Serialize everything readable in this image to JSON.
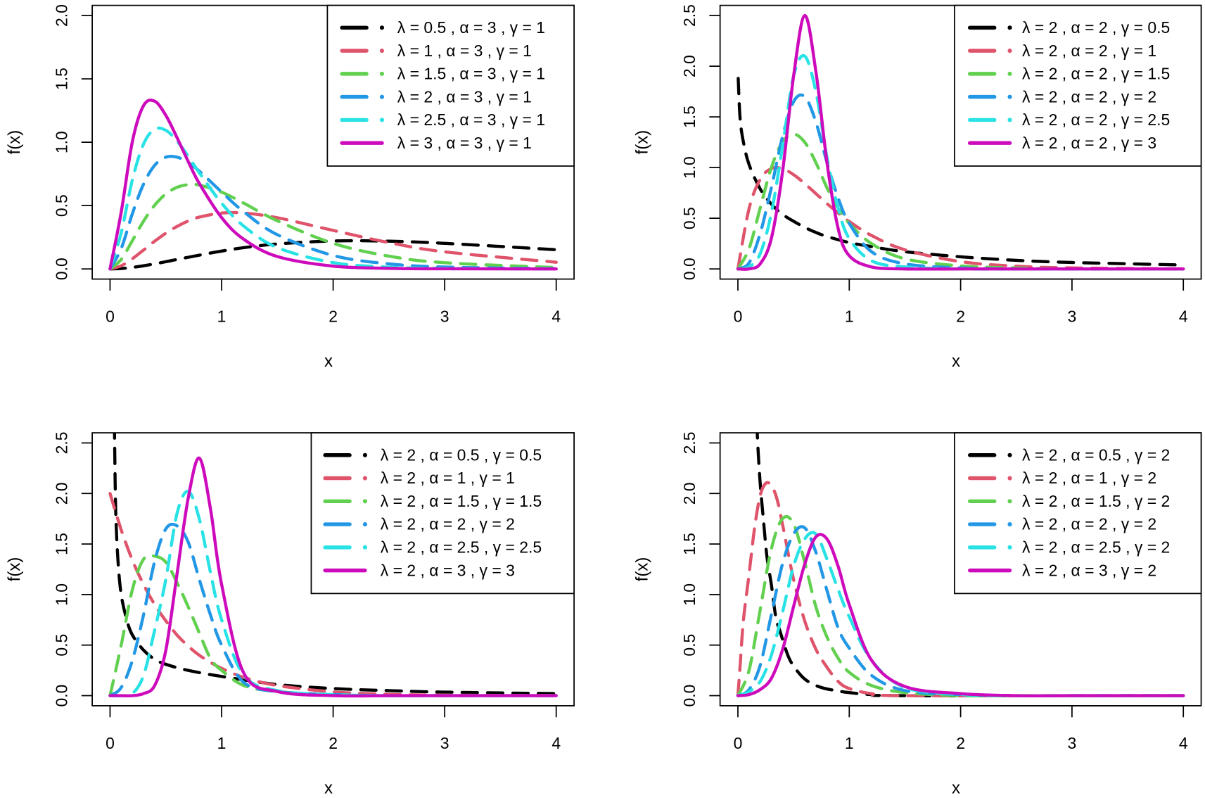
{
  "colors": {
    "black": "#000000",
    "red": "#DF536B",
    "green": "#61D04F",
    "blue": "#2297E6",
    "cyan": "#28E2E5",
    "magenta": "#CD0BBC"
  },
  "chart_data": [
    {
      "type": "line",
      "xlabel": "x",
      "ylabel": "f(x)",
      "xlim": [
        0,
        4
      ],
      "ylim": [
        0,
        2.0
      ],
      "xticks": [
        "0",
        "1",
        "2",
        "3",
        "4"
      ],
      "yticks": [
        "0.0",
        "0.5",
        "1.0",
        "1.5",
        "2.0"
      ],
      "grid": false,
      "legend": "top-right",
      "x": [
        0,
        0.1,
        0.2,
        0.3,
        0.4,
        0.5,
        0.6,
        0.7,
        0.8,
        1,
        1.2,
        1.5,
        2,
        2.5,
        3,
        4
      ],
      "series": [
        {
          "name": "λ = 0.5 , α = 3 , γ = 1",
          "color": "#000000",
          "dashed": true,
          "y": [
            0,
            0.003,
            0.012,
            0.025,
            0.04,
            0.057,
            0.075,
            0.092,
            0.109,
            0.141,
            0.168,
            0.197,
            0.221,
            0.219,
            0.202,
            0.152
          ]
        },
        {
          "name": "λ = 1 , α = 3 , γ = 1",
          "color": "#DF536B",
          "dashed": true,
          "y": [
            0,
            0.025,
            0.081,
            0.149,
            0.219,
            0.282,
            0.335,
            0.378,
            0.409,
            0.441,
            0.441,
            0.404,
            0.304,
            0.208,
            0.135,
            0.053
          ]
        },
        {
          "name": "λ = 1.5 , α = 3 , γ = 1",
          "color": "#61D04F",
          "dashed": true,
          "y": [
            0,
            0.075,
            0.224,
            0.377,
            0.503,
            0.592,
            0.644,
            0.665,
            0.662,
            0.606,
            0.518,
            0.38,
            0.202,
            0.101,
            0.049,
            0.011
          ]
        },
        {
          "name": "λ = 2 , α = 3 , γ = 1",
          "color": "#2297E6",
          "dashed": true,
          "y": [
            0,
            0.161,
            0.437,
            0.67,
            0.818,
            0.882,
            0.882,
            0.84,
            0.772,
            0.607,
            0.45,
            0.27,
            0.106,
            0.04,
            0.015,
            0.002
          ]
        },
        {
          "name": "λ = 2.5 , α = 3 , γ = 1",
          "color": "#28E2E5",
          "dashed": true,
          "y": [
            0,
            0.286,
            0.704,
            0.986,
            1.103,
            1.094,
            1.01,
            0.89,
            0.759,
            0.519,
            0.337,
            0.168,
            0.05,
            0.014,
            0.004,
            0
          ]
        },
        {
          "name": "λ = 3 , α = 3 , γ = 1",
          "color": "#CD0BBC",
          "dashed": false,
          "y": [
            0,
            0.448,
            1.006,
            1.289,
            1.324,
            1.212,
            1.037,
            0.849,
            0.675,
            0.405,
            0.233,
            0.098,
            0.022,
            0.005,
            0.001,
            0
          ]
        }
      ]
    },
    {
      "type": "line",
      "xlabel": "x",
      "ylabel": "f(x)",
      "xlim": [
        0,
        4
      ],
      "ylim": [
        0,
        2.5
      ],
      "xticks": [
        "0",
        "1",
        "2",
        "3",
        "4"
      ],
      "yticks": [
        "0.0",
        "0.5",
        "1.0",
        "1.5",
        "2.0",
        "2.5"
      ],
      "grid": false,
      "legend": "top-right",
      "x": [
        0,
        0.1,
        0.2,
        0.3,
        0.4,
        0.5,
        0.6,
        0.7,
        0.8,
        0.9,
        1,
        1.2,
        1.5,
        2,
        2.5,
        3,
        4
      ],
      "series": [
        {
          "name": "λ = 2 , α = 2 , γ = 0.5",
          "color": "#000000",
          "dashed": true,
          "points": [
            [
              0.003,
              1.88
            ],
            [
              0.02,
              1.48
            ],
            [
              0.05,
              1.25
            ],
            [
              0.1,
              1.03
            ],
            [
              0.2,
              0.79
            ],
            [
              0.3,
              0.64
            ],
            [
              0.4,
              0.54
            ],
            [
              0.5,
              0.47
            ],
            [
              0.6,
              0.41
            ],
            [
              0.7,
              0.36
            ],
            [
              0.8,
              0.32
            ],
            [
              1,
              0.26
            ],
            [
              1.2,
              0.22
            ],
            [
              1.5,
              0.17
            ],
            [
              2,
              0.12
            ],
            [
              2.5,
              0.085
            ],
            [
              3,
              0.064
            ],
            [
              4,
              0.039
            ]
          ]
        },
        {
          "name": "λ = 2 , α = 2 , γ = 1",
          "color": "#DF536B",
          "dashed": true,
          "y": [
            0,
            0.594,
            0.884,
            0.99,
            0.99,
            0.93,
            0.842,
            0.743,
            0.645,
            0.552,
            0.468,
            0.33,
            0.189,
            0.072,
            0.027,
            0.01,
            0.001
          ]
        },
        {
          "name": "λ = 2 , α = 2 , γ = 1.5",
          "color": "#61D04F",
          "dashed": true,
          "y": [
            0,
            0.2,
            0.6,
            1.0,
            1.25,
            1.33,
            1.25,
            1.05,
            0.8,
            0.6,
            0.45,
            0.25,
            0.1,
            0.03,
            0.01,
            0,
            0
          ]
        },
        {
          "name": "λ = 2 , α = 2 , γ = 2",
          "color": "#2297E6",
          "dashed": true,
          "y": [
            0,
            0.06,
            0.35,
            0.8,
            1.3,
            1.65,
            1.7,
            1.45,
            1.05,
            0.7,
            0.45,
            0.17,
            0.05,
            0.01,
            0,
            0,
            0
          ]
        },
        {
          "name": "λ = 2 , α = 2 , γ = 2.5",
          "color": "#28E2E5",
          "dashed": true,
          "y": [
            0,
            0.02,
            0.15,
            0.55,
            1.2,
            1.9,
            2.1,
            1.75,
            1.1,
            0.6,
            0.3,
            0.08,
            0.02,
            0,
            0,
            0,
            0
          ]
        },
        {
          "name": "λ = 2 , α = 2 , γ = 3",
          "color": "#CD0BBC",
          "dashed": false,
          "y": [
            0,
            0,
            0.05,
            0.3,
            0.95,
            1.9,
            2.5,
            1.95,
            1.05,
            0.4,
            0.13,
            0.02,
            0,
            0,
            0,
            0,
            0
          ]
        }
      ]
    },
    {
      "type": "line",
      "xlabel": "x",
      "ylabel": "f(x)",
      "xlim": [
        0,
        4
      ],
      "ylim": [
        0,
        2.5
      ],
      "xticks": [
        "0",
        "1",
        "2",
        "3",
        "4"
      ],
      "yticks": [
        "0.0",
        "0.5",
        "1.0",
        "1.5",
        "2.0",
        "2.5"
      ],
      "grid": false,
      "legend": "top-right",
      "x": [
        0,
        0.1,
        0.2,
        0.3,
        0.4,
        0.5,
        0.6,
        0.7,
        0.8,
        0.9,
        1,
        1.2,
        1.5,
        2,
        2.5,
        3,
        4
      ],
      "series": [
        {
          "name": "λ = 2 , α = 0.5 , γ = 0.5",
          "color": "#000000",
          "dashed": true,
          "points": [
            [
              0.035,
              3.2
            ],
            [
              0.04,
              2.6
            ],
            [
              0.05,
              1.85
            ],
            [
              0.07,
              1.35
            ],
            [
              0.1,
              1.0
            ],
            [
              0.15,
              0.75
            ],
            [
              0.2,
              0.6
            ],
            [
              0.3,
              0.45
            ],
            [
              0.4,
              0.36
            ],
            [
              0.5,
              0.31
            ],
            [
              0.7,
              0.25
            ],
            [
              1,
              0.19
            ],
            [
              1.5,
              0.11
            ],
            [
              2,
              0.07
            ],
            [
              2.5,
              0.05
            ],
            [
              3,
              0.035
            ],
            [
              4,
              0.02
            ]
          ]
        },
        {
          "name": "λ = 2 , α = 1 , γ = 1",
          "color": "#DF536B",
          "dashed": true,
          "y": [
            2,
            1.64,
            1.34,
            1.1,
            0.9,
            0.74,
            0.6,
            0.49,
            0.4,
            0.33,
            0.27,
            0.18,
            0.1,
            0.037,
            0.013,
            0.005,
            0.001
          ]
        },
        {
          "name": "λ = 2 , α = 1.5 , γ = 1.5",
          "color": "#61D04F",
          "dashed": true,
          "y": [
            0,
            0.5,
            1.05,
            1.35,
            1.38,
            1.32,
            1.12,
            0.88,
            0.62,
            0.37,
            0.25,
            0.1,
            0.04,
            0.01,
            0,
            0,
            0
          ]
        },
        {
          "name": "λ = 2 , α = 2 , γ = 2",
          "color": "#2297E6",
          "dashed": true,
          "y": [
            0,
            0.08,
            0.35,
            0.8,
            1.33,
            1.65,
            1.68,
            1.52,
            1.15,
            0.8,
            0.5,
            0.13,
            0.04,
            0.01,
            0,
            0,
            0
          ]
        },
        {
          "name": "λ = 2 , α = 2.5 , γ = 2.5",
          "color": "#28E2E5",
          "dashed": true,
          "y": [
            0,
            0,
            0.02,
            0.2,
            0.65,
            1.15,
            1.8,
            2.02,
            1.75,
            1.22,
            0.75,
            0.2,
            0.05,
            0.01,
            0,
            0,
            0
          ]
        },
        {
          "name": "λ = 2 , α = 3 , γ = 3",
          "color": "#CD0BBC",
          "dashed": false,
          "y": [
            0,
            0,
            0,
            0.02,
            0.1,
            0.45,
            1.2,
            1.95,
            2.35,
            1.85,
            1.1,
            0.22,
            0.04,
            0,
            0,
            0,
            0
          ]
        }
      ]
    },
    {
      "type": "line",
      "xlabel": "x",
      "ylabel": "f(x)",
      "xlim": [
        0,
        4
      ],
      "ylim": [
        0,
        2.5
      ],
      "xticks": [
        "0",
        "1",
        "2",
        "3",
        "4"
      ],
      "yticks": [
        "0.0",
        "0.5",
        "1.0",
        "1.5",
        "2.0",
        "2.5"
      ],
      "grid": false,
      "legend": "top-right",
      "x": [
        0,
        0.1,
        0.2,
        0.3,
        0.4,
        0.5,
        0.6,
        0.7,
        0.8,
        0.9,
        1,
        1.2,
        1.5,
        2,
        2.5,
        3,
        4
      ],
      "series": [
        {
          "name": "λ = 2 , α = 0.5 , γ = 2",
          "color": "#000000",
          "dashed": true,
          "points": [
            [
              0.17,
              2.7
            ],
            [
              0.18,
              2.45
            ],
            [
              0.2,
              2.1
            ],
            [
              0.23,
              1.73
            ],
            [
              0.26,
              1.38
            ],
            [
              0.3,
              1.1
            ],
            [
              0.34,
              0.78
            ],
            [
              0.38,
              0.63
            ],
            [
              0.46,
              0.37
            ],
            [
              0.55,
              0.22
            ],
            [
              0.63,
              0.14
            ],
            [
              0.75,
              0.08
            ],
            [
              0.88,
              0.05
            ],
            [
              1,
              0.03
            ],
            [
              1.2,
              0.01
            ],
            [
              1.5,
              0
            ],
            [
              4,
              0
            ]
          ]
        },
        {
          "name": "λ = 2 , α = 1 , γ = 2",
          "color": "#DF536B",
          "dashed": true,
          "points": [
            [
              0,
              0
            ],
            [
              0.02,
              0.3
            ],
            [
              0.05,
              0.75
            ],
            [
              0.1,
              1.2
            ],
            [
              0.15,
              1.66
            ],
            [
              0.2,
              1.98
            ],
            [
              0.25,
              2.1
            ],
            [
              0.3,
              2.08
            ],
            [
              0.35,
              1.95
            ],
            [
              0.4,
              1.7
            ],
            [
              0.5,
              1.15
            ],
            [
              0.6,
              0.74
            ],
            [
              0.7,
              0.46
            ],
            [
              0.8,
              0.28
            ],
            [
              0.9,
              0.14
            ],
            [
              1,
              0.07
            ],
            [
              1.2,
              0.02
            ],
            [
              1.5,
              0
            ],
            [
              4,
              0
            ]
          ]
        },
        {
          "name": "λ = 2 , α = 1.5 , γ = 2",
          "color": "#61D04F",
          "dashed": true,
          "y": [
            0,
            0.25,
            0.85,
            1.45,
            1.75,
            1.7,
            1.32,
            0.88,
            0.58,
            0.37,
            0.23,
            0.1,
            0.03,
            0,
            0,
            0,
            0
          ]
        },
        {
          "name": "λ = 2 , α = 2 , γ = 2",
          "color": "#2297E6",
          "dashed": true,
          "y": [
            0,
            0.06,
            0.3,
            0.8,
            1.3,
            1.6,
            1.66,
            1.42,
            1.04,
            0.67,
            0.47,
            0.2,
            0.05,
            0.01,
            0,
            0,
            0
          ]
        },
        {
          "name": "λ = 2 , α = 2.5 , γ = 2",
          "color": "#28E2E5",
          "dashed": true,
          "y": [
            0,
            0.04,
            0.14,
            0.4,
            0.82,
            1.28,
            1.55,
            1.6,
            1.35,
            1.05,
            0.78,
            0.35,
            0.08,
            0.01,
            0,
            0,
            0
          ]
        },
        {
          "name": "λ = 2 , α = 3 , γ = 2",
          "color": "#CD0BBC",
          "dashed": false,
          "y": [
            0,
            0.01,
            0.06,
            0.17,
            0.45,
            0.88,
            1.3,
            1.57,
            1.55,
            1.28,
            0.9,
            0.35,
            0.09,
            0.02,
            0,
            0,
            0
          ]
        }
      ]
    }
  ]
}
